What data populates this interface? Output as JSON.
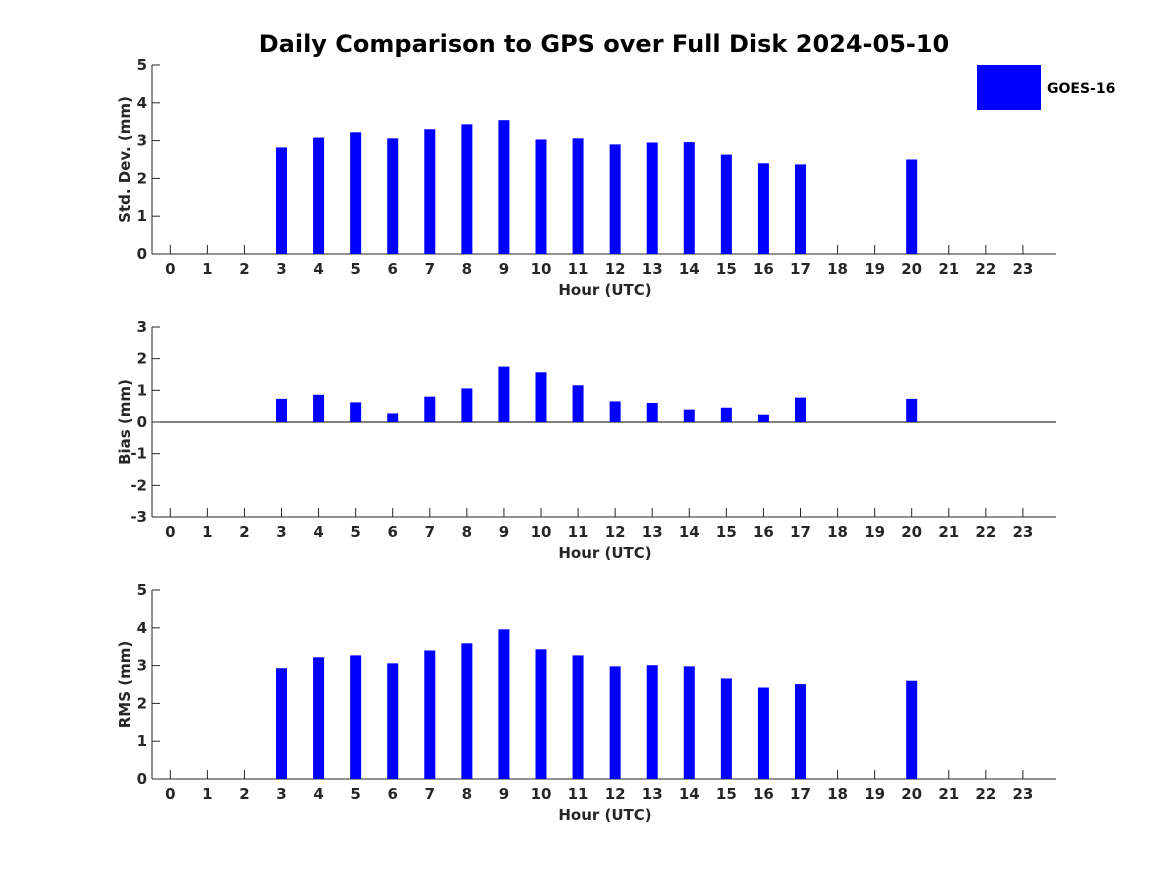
{
  "chart_data": [
    {
      "type": "bar",
      "title": "Daily Comparison to GPS over Full Disk 2024-05-10",
      "xlabel": "Hour (UTC)",
      "ylabel": "Std. Dev. (mm)",
      "ylim": [
        0,
        5
      ],
      "yticks": [
        0,
        1,
        2,
        3,
        4,
        5
      ],
      "categories": [
        "0",
        "1",
        "2",
        "3",
        "4",
        "5",
        "6",
        "7",
        "8",
        "9",
        "10",
        "11",
        "12",
        "13",
        "14",
        "15",
        "16",
        "17",
        "18",
        "19",
        "20",
        "21",
        "22",
        "23"
      ],
      "series": [
        {
          "name": "GOES-16",
          "color": "#0000ff",
          "values": [
            null,
            null,
            null,
            2.82,
            3.08,
            3.22,
            3.06,
            3.3,
            3.43,
            3.54,
            3.03,
            3.06,
            2.9,
            2.95,
            2.96,
            2.63,
            2.4,
            2.37,
            null,
            null,
            2.5,
            null,
            null,
            null
          ]
        }
      ],
      "legend": {
        "position": "top-right",
        "entries": [
          "GOES-16"
        ]
      }
    },
    {
      "type": "bar",
      "title": "",
      "xlabel": "Hour (UTC)",
      "ylabel": "Bias (mm)",
      "ylim": [
        -3,
        3
      ],
      "yticks": [
        -3,
        -2,
        -1,
        0,
        1,
        2,
        3
      ],
      "categories": [
        "0",
        "1",
        "2",
        "3",
        "4",
        "5",
        "6",
        "7",
        "8",
        "9",
        "10",
        "11",
        "12",
        "13",
        "14",
        "15",
        "16",
        "17",
        "18",
        "19",
        "20",
        "21",
        "22",
        "23"
      ],
      "series": [
        {
          "name": "GOES-16",
          "color": "#0000ff",
          "values": [
            null,
            null,
            null,
            0.73,
            0.86,
            0.62,
            0.27,
            0.8,
            1.06,
            1.75,
            1.57,
            1.16,
            0.65,
            0.6,
            0.39,
            0.45,
            0.23,
            0.77,
            null,
            null,
            0.73,
            null,
            null,
            null
          ]
        }
      ]
    },
    {
      "type": "bar",
      "title": "",
      "xlabel": "Hour (UTC)",
      "ylabel": "RMS (mm)",
      "ylim": [
        0,
        5
      ],
      "yticks": [
        0,
        1,
        2,
        3,
        4,
        5
      ],
      "categories": [
        "0",
        "1",
        "2",
        "3",
        "4",
        "5",
        "6",
        "7",
        "8",
        "9",
        "10",
        "11",
        "12",
        "13",
        "14",
        "15",
        "16",
        "17",
        "18",
        "19",
        "20",
        "21",
        "22",
        "23"
      ],
      "series": [
        {
          "name": "GOES-16",
          "color": "#0000ff",
          "values": [
            null,
            null,
            null,
            2.93,
            3.22,
            3.27,
            3.06,
            3.4,
            3.59,
            3.96,
            3.43,
            3.27,
            2.98,
            3.01,
            2.98,
            2.66,
            2.42,
            2.51,
            null,
            null,
            2.6,
            null,
            null,
            null
          ]
        }
      ]
    }
  ]
}
